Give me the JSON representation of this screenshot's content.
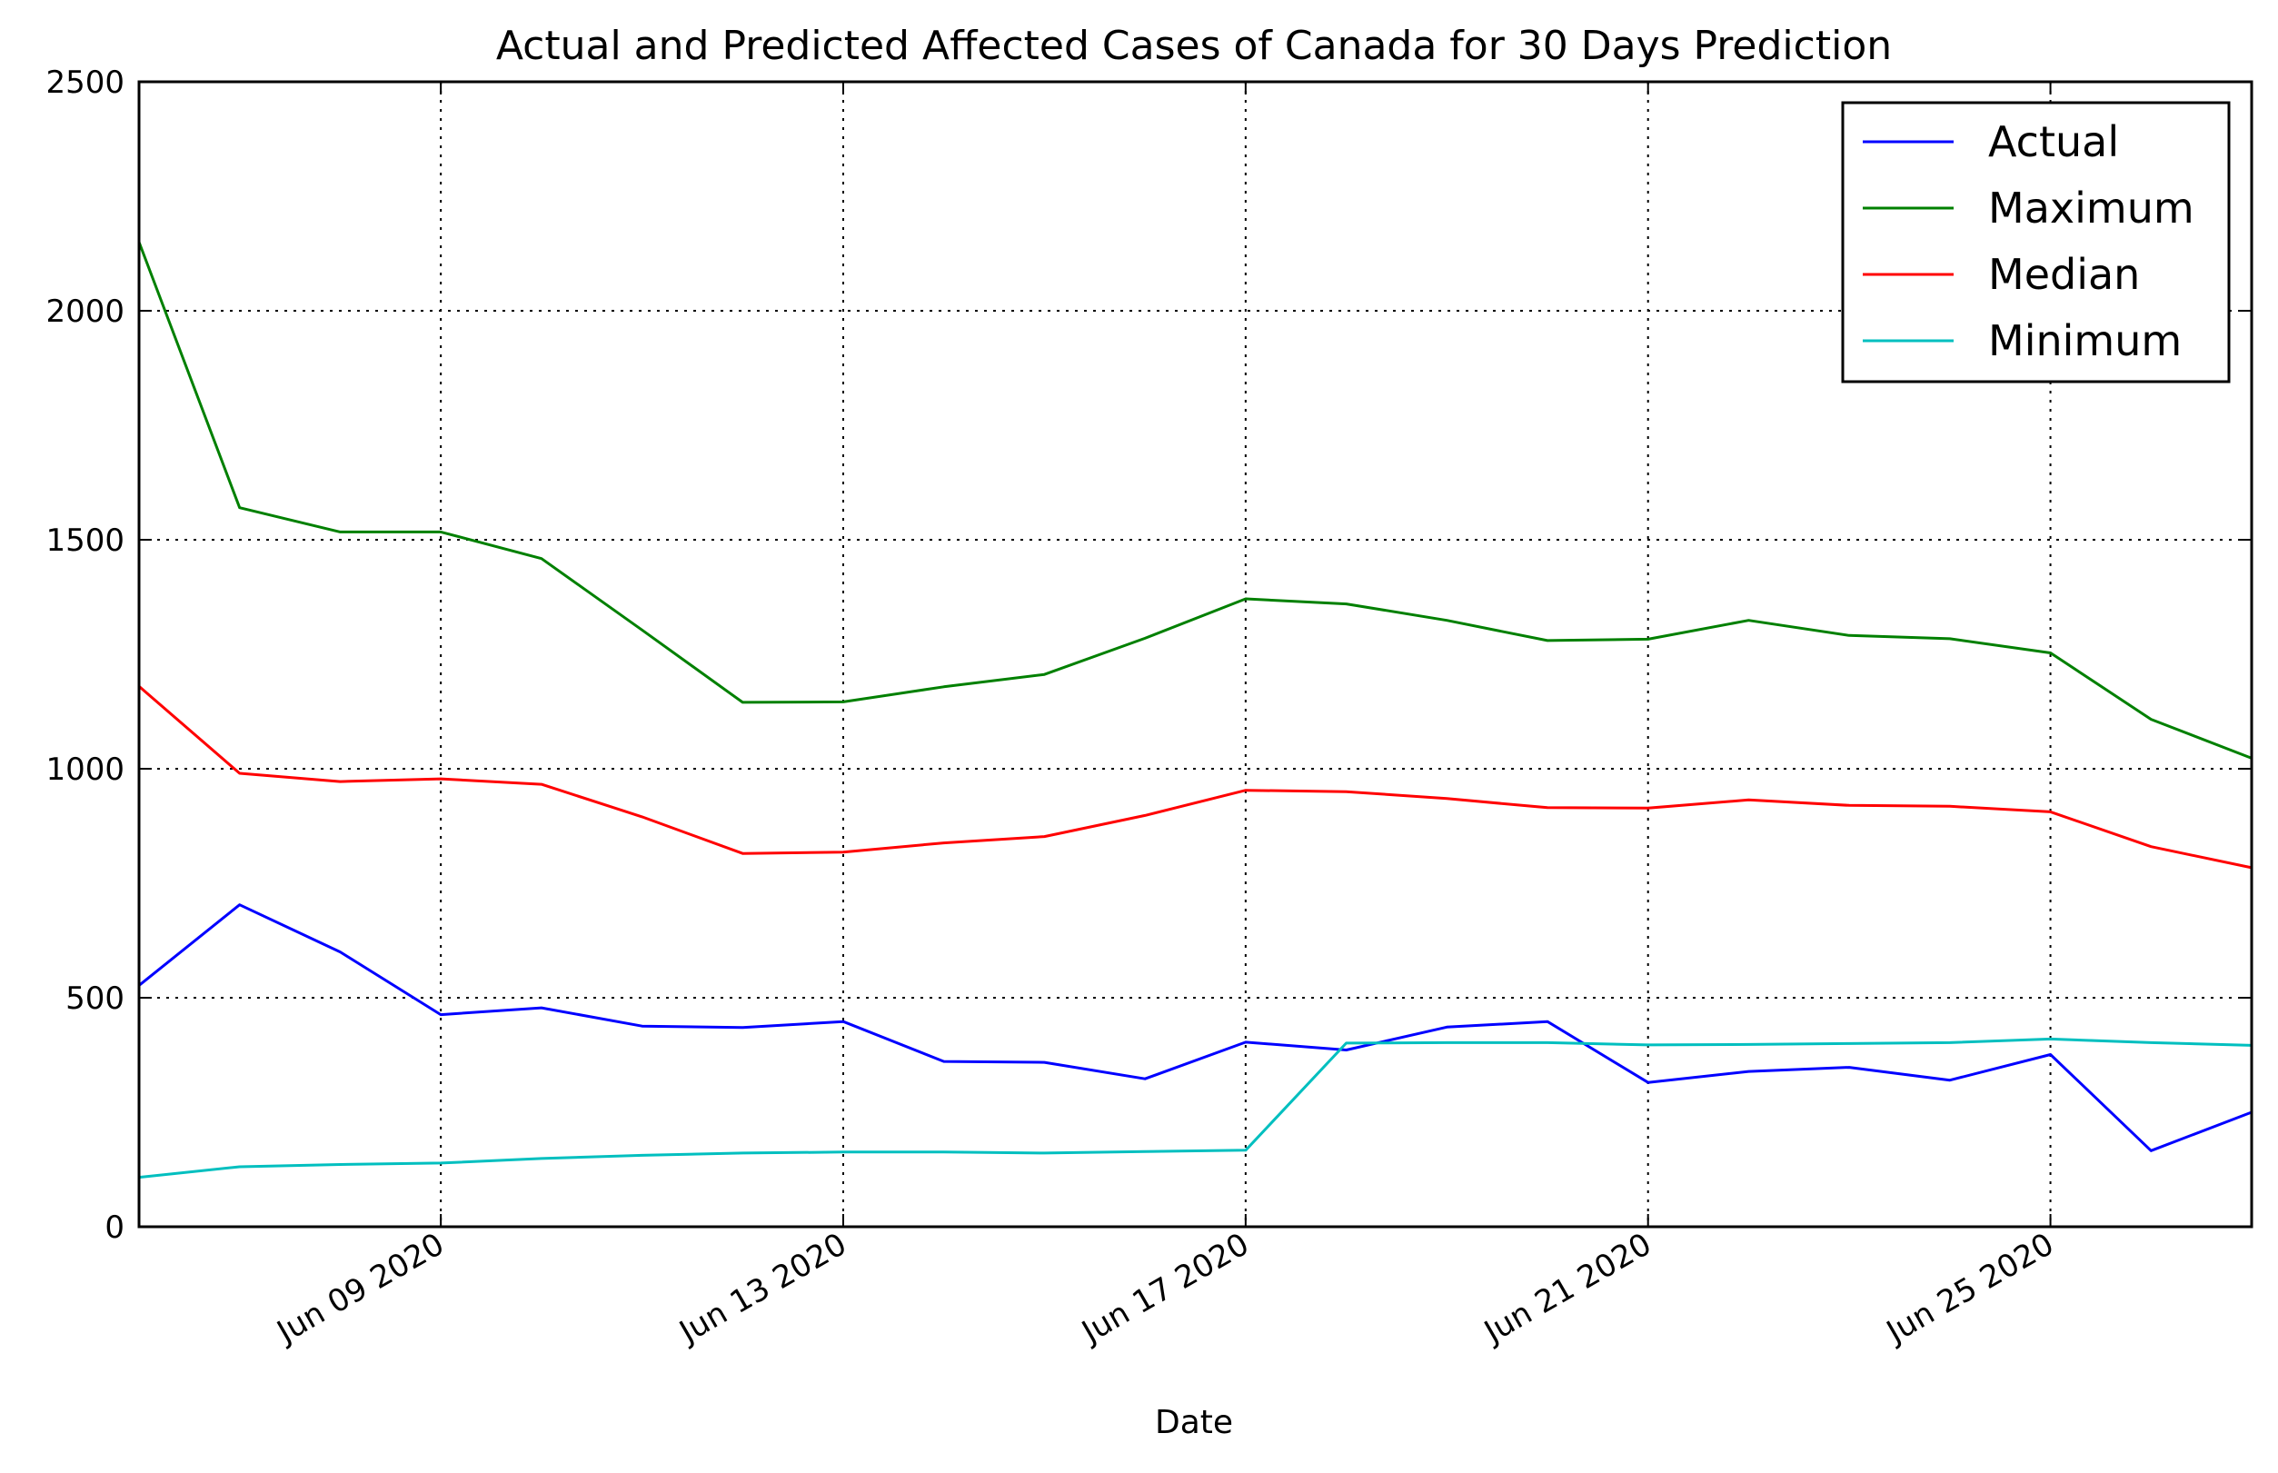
{
  "chart_data": {
    "type": "line",
    "title": "Actual and Predicted Affected Cases of Canada for 30 Days Prediction",
    "xlabel": "Date",
    "ylabel": "",
    "x": [
      "Jun 06 2020",
      "Jun 07 2020",
      "Jun 08 2020",
      "Jun 09 2020",
      "Jun 10 2020",
      "Jun 11 2020",
      "Jun 12 2020",
      "Jun 13 2020",
      "Jun 14 2020",
      "Jun 15 2020",
      "Jun 16 2020",
      "Jun 17 2020",
      "Jun 18 2020",
      "Jun 19 2020",
      "Jun 20 2020",
      "Jun 21 2020",
      "Jun 22 2020",
      "Jun 23 2020",
      "Jun 24 2020",
      "Jun 25 2020",
      "Jun 26 2020",
      "Jun 27 2020"
    ],
    "xlim": [
      "Jun 06 2020",
      "Jun 27 2020"
    ],
    "ylim": [
      0,
      2500
    ],
    "x_ticks": [
      "Jun 09 2020",
      "Jun 13 2020",
      "Jun 17 2020",
      "Jun 21 2020",
      "Jun 25 2020"
    ],
    "y_ticks": [
      0,
      500,
      1000,
      1500,
      2000,
      2500
    ],
    "grid": true,
    "legend_position": "top-right",
    "series": [
      {
        "name": "Actual",
        "color": "#0000ff",
        "values": [
          527,
          703,
          600,
          463,
          478,
          438,
          435,
          448,
          361,
          359,
          323,
          403,
          386,
          436,
          448,
          315,
          339,
          348,
          320,
          376,
          166,
          250
        ]
      },
      {
        "name": "Maximum",
        "color": "#008000",
        "values": [
          2150,
          1570,
          1517,
          1517,
          1459,
          1303,
          1145,
          1146,
          1179,
          1206,
          1285,
          1371,
          1360,
          1324,
          1280,
          1283,
          1324,
          1291,
          1284,
          1253,
          1108,
          1023
        ]
      },
      {
        "name": "Median",
        "color": "#ff0000",
        "values": [
          1180,
          990,
          972,
          978,
          966,
          895,
          815,
          818,
          838,
          852,
          898,
          953,
          950,
          935,
          915,
          914,
          932,
          920,
          918,
          906,
          830,
          784
        ]
      },
      {
        "name": "Minimum",
        "color": "#00bfbf",
        "values": [
          108,
          131,
          136,
          139,
          149,
          156,
          161,
          163,
          163,
          161,
          164,
          167,
          401,
          402,
          402,
          397,
          398,
          400,
          402,
          410,
          402,
          396
        ]
      }
    ]
  }
}
